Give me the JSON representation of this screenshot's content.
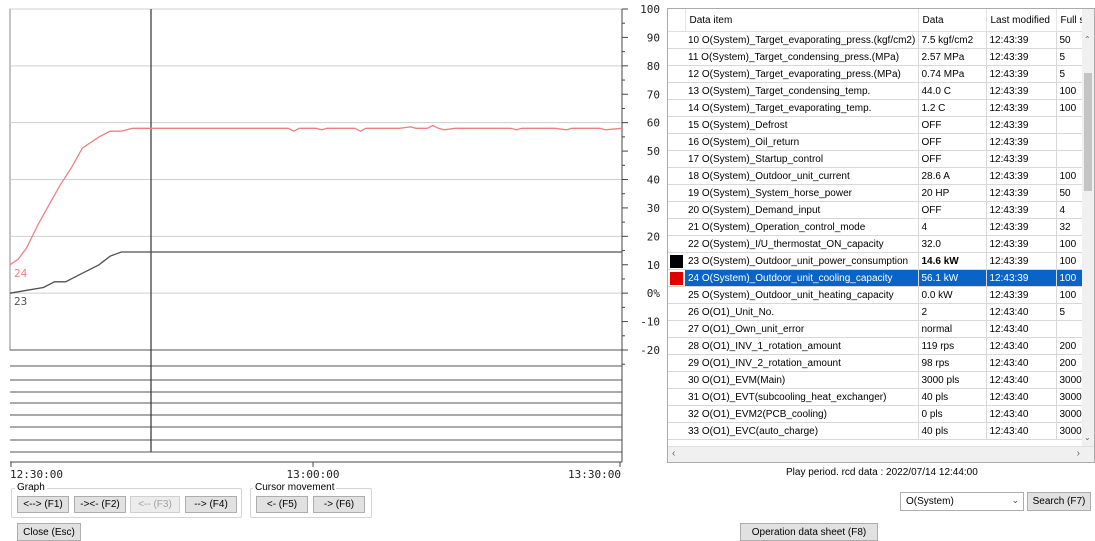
{
  "chart_data": {
    "type": "line",
    "x_tick_labels": [
      "12:30:00",
      "13:00:00",
      "13:30:00"
    ],
    "y_tick_labels": [
      "100",
      "90",
      "80",
      "70",
      "60",
      "50",
      "40",
      "30",
      "20",
      "10",
      "0%",
      "-10",
      "-20"
    ],
    "ylim": [
      -20,
      100
    ],
    "grid": true,
    "series": [
      {
        "name": "24",
        "color": "#f08080",
        "values": [
          [
            0,
            10
          ],
          [
            1.5,
            12
          ],
          [
            3,
            16
          ],
          [
            5,
            24
          ],
          [
            7,
            31
          ],
          [
            9,
            38
          ],
          [
            11,
            44
          ],
          [
            13,
            51
          ],
          [
            16,
            55
          ],
          [
            18,
            57
          ],
          [
            20,
            57
          ],
          [
            22,
            58
          ],
          [
            25,
            58
          ],
          [
            30,
            58
          ],
          [
            40,
            58
          ],
          [
            50,
            58
          ],
          [
            51,
            57
          ],
          [
            52,
            58
          ],
          [
            55,
            58
          ],
          [
            56,
            57.5
          ],
          [
            57,
            58
          ],
          [
            62,
            58
          ],
          [
            63,
            57
          ],
          [
            64,
            58
          ],
          [
            70,
            58
          ],
          [
            72,
            58.5
          ],
          [
            73,
            58
          ],
          [
            75,
            58
          ],
          [
            76,
            59
          ],
          [
            77,
            58
          ],
          [
            78,
            57.5
          ],
          [
            80,
            58
          ],
          [
            90,
            58
          ],
          [
            91,
            57.5
          ],
          [
            92,
            58
          ],
          [
            98,
            58
          ],
          [
            100,
            57.5
          ],
          [
            101,
            58
          ],
          [
            106,
            58
          ],
          [
            107,
            57.5
          ],
          [
            110,
            58
          ]
        ]
      },
      {
        "name": "23",
        "color": "#505050",
        "values": [
          [
            0,
            0
          ],
          [
            3,
            1
          ],
          [
            6,
            2
          ],
          [
            8,
            4
          ],
          [
            10,
            4
          ],
          [
            12,
            6
          ],
          [
            14,
            8
          ],
          [
            16,
            10
          ],
          [
            18,
            13
          ],
          [
            20,
            14.5
          ],
          [
            24,
            14.5
          ],
          [
            30,
            14.5
          ],
          [
            60,
            14.5
          ],
          [
            110,
            14.5
          ]
        ]
      }
    ]
  },
  "table": {
    "columns": [
      "Data item",
      "Data",
      "Last modified",
      "Full s"
    ],
    "rows": [
      {
        "item": "10 O(System)_Target_evaporating_press.(kgf/cm2)",
        "data": "7.5 kgf/cm2",
        "modified": "12:43:39",
        "full": "50"
      },
      {
        "item": "11 O(System)_Target_condensing_press.(MPa)",
        "data": "2.57 MPa",
        "modified": "12:43:39",
        "full": "5"
      },
      {
        "item": "12 O(System)_Target_evaporating_press.(MPa)",
        "data": "0.74 MPa",
        "modified": "12:43:39",
        "full": "5"
      },
      {
        "item": "13 O(System)_Target_condensing_temp.",
        "data": "44.0 C",
        "modified": "12:43:39",
        "full": "100"
      },
      {
        "item": "14 O(System)_Target_evaporating_temp.",
        "data": "1.2 C",
        "modified": "12:43:39",
        "full": "100"
      },
      {
        "item": "15 O(System)_Defrost",
        "data": "OFF",
        "modified": "12:43:39",
        "full": ""
      },
      {
        "item": "16 O(System)_Oil_return",
        "data": "OFF",
        "modified": "12:43:39",
        "full": ""
      },
      {
        "item": "17 O(System)_Startup_control",
        "data": "OFF",
        "modified": "12:43:39",
        "full": ""
      },
      {
        "item": "18 O(System)_Outdoor_unit_current",
        "data": "28.6 A",
        "modified": "12:43:39",
        "full": "100"
      },
      {
        "item": "19 O(System)_System_horse_power",
        "data": "20 HP",
        "modified": "12:43:39",
        "full": "50"
      },
      {
        "item": "20 O(System)_Demand_input",
        "data": "OFF",
        "modified": "12:43:39",
        "full": "4"
      },
      {
        "item": "21 O(System)_Operation_control_mode",
        "data": "4",
        "modified": "12:43:39",
        "full": "32"
      },
      {
        "item": "22 O(System)_I/U_thermostat_ON_capacity",
        "data": "32.0",
        "modified": "12:43:39",
        "full": "100"
      },
      {
        "item": "23 O(System)_Outdoor_unit_power_consumption",
        "data": "14.6 kW",
        "modified": "12:43:39",
        "full": "100",
        "swatch": "#000000",
        "highlighted": true
      },
      {
        "item": "24 O(System)_Outdoor_unit_cooling_capacity",
        "data": "56.1 kW",
        "modified": "12:43:39",
        "full": "100",
        "swatch": "#e00000",
        "selected": true
      },
      {
        "item": "25 O(System)_Outdoor_unit_heating_capacity",
        "data": "0.0 kW",
        "modified": "12:43:39",
        "full": "100"
      },
      {
        "item": "26 O(O1)_Unit_No.",
        "data": "2",
        "modified": "12:43:40",
        "full": "5"
      },
      {
        "item": "27 O(O1)_Own_unit_error",
        "data": "normal",
        "modified": "12:43:40",
        "full": ""
      },
      {
        "item": "28 O(O1)_INV_1_rotation_amount",
        "data": "119 rps",
        "modified": "12:43:40",
        "full": "200"
      },
      {
        "item": "29 O(O1)_INV_2_rotation_amount",
        "data": "98 rps",
        "modified": "12:43:40",
        "full": "200"
      },
      {
        "item": "30 O(O1)_EVM(Main)",
        "data": "3000 pls",
        "modified": "12:43:40",
        "full": "3000"
      },
      {
        "item": "31 O(O1)_EVT(subcooling_heat_exchanger)",
        "data": "40 pls",
        "modified": "12:43:40",
        "full": "3000"
      },
      {
        "item": "32 O(O1)_EVM2(PCB_cooling)",
        "data": "0 pls",
        "modified": "12:43:40",
        "full": "3000"
      },
      {
        "item": "33 O(O1)_EVC(auto_charge)",
        "data": "40 pls",
        "modified": "12:43:40",
        "full": "3000"
      }
    ]
  },
  "graph_group": {
    "label": "Graph",
    "buttons": [
      "<--> (F1)",
      "-><- (F2)",
      "<-- (F3)",
      "--> (F4)"
    ]
  },
  "cursor_group": {
    "label": "Cursor movement",
    "buttons": [
      "<- (F5)",
      "-> (F6)"
    ]
  },
  "close_button": "Close (Esc)",
  "status_text": "Play period. rcd data : 2022/07/14 12:44:00",
  "select_value": "O(System)",
  "search_button": "Search (F7)",
  "operation_button": "Operation data sheet (F8)"
}
